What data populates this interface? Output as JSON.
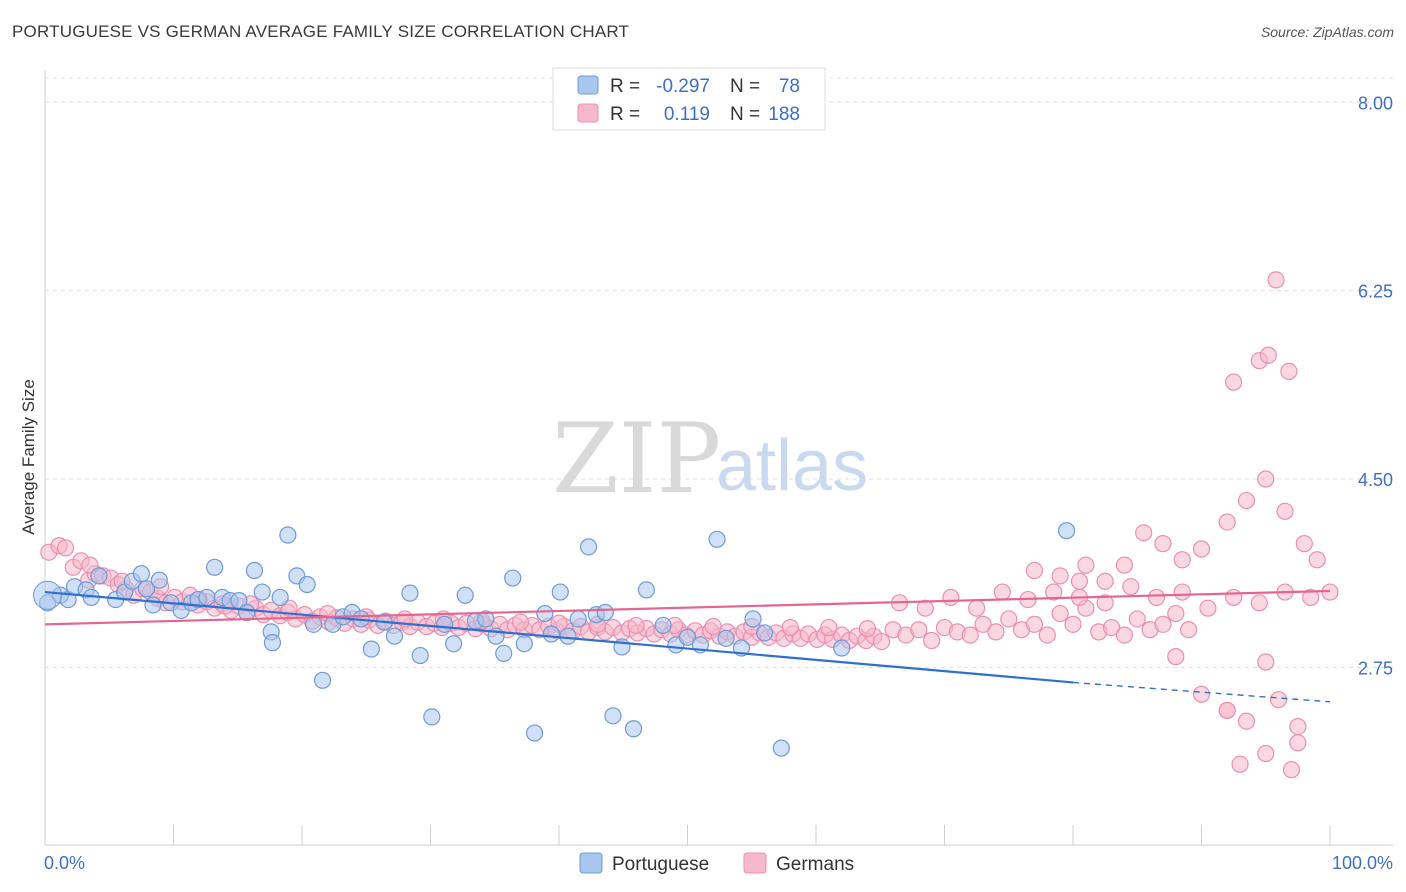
{
  "header": {
    "title": "PORTUGUESE VS GERMAN AVERAGE FAMILY SIZE CORRELATION CHART",
    "source": "Source: ZipAtlas.com"
  },
  "watermark": {
    "zip": "ZIP",
    "atlas": "atlas"
  },
  "legend": {
    "rows": [
      {
        "r_label": "R =",
        "r_value": "-0.297",
        "n_label": "N =",
        "n_value": "78",
        "color": "#8fb4e6"
      },
      {
        "r_label": "R =",
        "r_value": "0.119",
        "n_label": "N =",
        "n_value": "188",
        "color": "#f2a5bf"
      }
    ]
  },
  "colors": {
    "portuguese_fill": "#a9c6ee",
    "portuguese_stroke": "#6f9ad8",
    "portuguese_line": "#2f6fcf",
    "german_fill": "#f6b8cb",
    "german_stroke": "#ec8fae",
    "german_line": "#e5658f"
  },
  "chart_data": {
    "type": "scatter",
    "xlabel": "",
    "ylabel": "Average Family Size",
    "xlim": [
      0,
      100
    ],
    "ylim": [
      1.1,
      8.3
    ],
    "x_tick_labels": [
      "0.0%",
      "100.0%"
    ],
    "y_ticks": [
      2.75,
      4.5,
      6.25,
      8.0
    ],
    "y_tick_labels": [
      "2.75",
      "4.50",
      "6.25",
      "8.00"
    ],
    "grid": "horizontal dashed",
    "legend_position": "top-center",
    "series": [
      {
        "name": "Portuguese",
        "trend": {
          "x0": 0,
          "y0": 3.45,
          "x1": 80,
          "y1": 2.61,
          "dashed_to": 100,
          "dashed_y": 2.43
        },
        "points": [
          [
            0.2,
            3.35
          ],
          [
            1.2,
            3.42
          ],
          [
            1.8,
            3.38
          ],
          [
            2.3,
            3.5
          ],
          [
            3.2,
            3.47
          ],
          [
            3.6,
            3.4
          ],
          [
            4.2,
            3.6
          ],
          [
            5.5,
            3.38
          ],
          [
            6.2,
            3.45
          ],
          [
            6.8,
            3.55
          ],
          [
            7.5,
            3.62
          ],
          [
            7.9,
            3.48
          ],
          [
            8.4,
            3.33
          ],
          [
            8.9,
            3.56
          ],
          [
            9.8,
            3.35
          ],
          [
            10.6,
            3.28
          ],
          [
            11.4,
            3.35
          ],
          [
            11.9,
            3.38
          ],
          [
            12.6,
            3.4
          ],
          [
            13.2,
            3.68
          ],
          [
            13.8,
            3.4
          ],
          [
            14.4,
            3.37
          ],
          [
            15.1,
            3.37
          ],
          [
            15.7,
            3.26
          ],
          [
            16.3,
            3.65
          ],
          [
            16.9,
            3.45
          ],
          [
            17.6,
            3.08
          ],
          [
            17.7,
            2.98
          ],
          [
            18.3,
            3.4
          ],
          [
            18.9,
            3.98
          ],
          [
            19.6,
            3.6
          ],
          [
            20.4,
            3.52
          ],
          [
            20.9,
            3.15
          ],
          [
            21.6,
            2.63
          ],
          [
            22.4,
            3.15
          ],
          [
            23.2,
            3.22
          ],
          [
            23.9,
            3.26
          ],
          [
            24.6,
            3.2
          ],
          [
            25.4,
            2.92
          ],
          [
            26.4,
            3.17
          ],
          [
            27.2,
            3.04
          ],
          [
            28.4,
            3.44
          ],
          [
            29.2,
            2.86
          ],
          [
            30.1,
            2.29
          ],
          [
            31.1,
            3.15
          ],
          [
            31.8,
            2.97
          ],
          [
            32.7,
            3.42
          ],
          [
            33.5,
            3.18
          ],
          [
            34.3,
            3.2
          ],
          [
            35.1,
            3.04
          ],
          [
            35.7,
            2.88
          ],
          [
            36.4,
            3.58
          ],
          [
            37.3,
            2.97
          ],
          [
            38.1,
            2.14
          ],
          [
            38.9,
            3.25
          ],
          [
            39.4,
            3.06
          ],
          [
            40.1,
            3.45
          ],
          [
            40.7,
            3.04
          ],
          [
            41.5,
            3.2
          ],
          [
            42.3,
            3.87
          ],
          [
            42.9,
            3.24
          ],
          [
            43.6,
            3.26
          ],
          [
            44.2,
            2.3
          ],
          [
            44.9,
            2.94
          ],
          [
            45.8,
            2.18
          ],
          [
            46.8,
            3.47
          ],
          [
            48.1,
            3.14
          ],
          [
            49.1,
            2.96
          ],
          [
            50.0,
            3.03
          ],
          [
            51.0,
            2.96
          ],
          [
            52.3,
            3.94
          ],
          [
            53.0,
            3.02
          ],
          [
            54.2,
            2.93
          ],
          [
            55.1,
            3.2
          ],
          [
            56.0,
            3.07
          ],
          [
            57.3,
            2.0
          ],
          [
            62.0,
            2.93
          ],
          [
            79.5,
            4.02
          ]
        ]
      },
      {
        "name": "Germans",
        "trend": {
          "x0": 0,
          "y0": 3.15,
          "x1": 100,
          "y1": 3.46
        },
        "points": [
          [
            0.3,
            3.82
          ],
          [
            1.1,
            3.88
          ],
          [
            1.6,
            3.86
          ],
          [
            2.2,
            3.68
          ],
          [
            2.8,
            3.74
          ],
          [
            3.4,
            3.56
          ],
          [
            3.9,
            3.62
          ],
          [
            4.5,
            3.6
          ],
          [
            5.1,
            3.58
          ],
          [
            5.7,
            3.52
          ],
          [
            6.3,
            3.48
          ],
          [
            6.9,
            3.42
          ],
          [
            7.6,
            3.48
          ],
          [
            8.2,
            3.45
          ],
          [
            8.8,
            3.39
          ],
          [
            9.4,
            3.35
          ],
          [
            10.1,
            3.4
          ],
          [
            10.7,
            3.36
          ],
          [
            11.3,
            3.42
          ],
          [
            11.9,
            3.33
          ],
          [
            12.6,
            3.36
          ],
          [
            13.2,
            3.3
          ],
          [
            13.8,
            3.34
          ],
          [
            14.5,
            3.28
          ],
          [
            15.1,
            3.32
          ],
          [
            15.7,
            3.26
          ],
          [
            16.4,
            3.3
          ],
          [
            17.0,
            3.24
          ],
          [
            17.6,
            3.28
          ],
          [
            18.3,
            3.23
          ],
          [
            18.9,
            3.26
          ],
          [
            19.5,
            3.2
          ],
          [
            20.2,
            3.24
          ],
          [
            20.8,
            3.18
          ],
          [
            21.4,
            3.22
          ],
          [
            22.1,
            3.17
          ],
          [
            22.7,
            3.21
          ],
          [
            23.3,
            3.16
          ],
          [
            24.0,
            3.2
          ],
          [
            24.6,
            3.15
          ],
          [
            25.2,
            3.19
          ],
          [
            25.9,
            3.14
          ],
          [
            26.5,
            3.18
          ],
          [
            27.1,
            3.14
          ],
          [
            27.8,
            3.17
          ],
          [
            28.4,
            3.13
          ],
          [
            29.0,
            3.17
          ],
          [
            29.7,
            3.13
          ],
          [
            30.3,
            3.16
          ],
          [
            30.9,
            3.12
          ],
          [
            31.6,
            3.16
          ],
          [
            32.2,
            3.12
          ],
          [
            32.8,
            3.16
          ],
          [
            33.5,
            3.11
          ],
          [
            34.1,
            3.15
          ],
          [
            34.7,
            3.11
          ],
          [
            35.4,
            3.15
          ],
          [
            36.0,
            3.1
          ],
          [
            36.6,
            3.14
          ],
          [
            37.3,
            3.1
          ],
          [
            37.9,
            3.14
          ],
          [
            38.5,
            3.1
          ],
          [
            39.2,
            3.13
          ],
          [
            39.8,
            3.09
          ],
          [
            40.4,
            3.13
          ],
          [
            41.1,
            3.09
          ],
          [
            41.7,
            3.13
          ],
          [
            42.3,
            3.08
          ],
          [
            43.0,
            3.12
          ],
          [
            43.6,
            3.08
          ],
          [
            44.2,
            3.12
          ],
          [
            44.9,
            3.07
          ],
          [
            45.5,
            3.11
          ],
          [
            46.1,
            3.07
          ],
          [
            46.8,
            3.11
          ],
          [
            47.4,
            3.06
          ],
          [
            48.0,
            3.1
          ],
          [
            48.7,
            3.06
          ],
          [
            49.3,
            3.1
          ],
          [
            49.9,
            3.05
          ],
          [
            50.6,
            3.09
          ],
          [
            51.2,
            3.05
          ],
          [
            51.8,
            3.09
          ],
          [
            52.5,
            3.04
          ],
          [
            53.1,
            3.08
          ],
          [
            53.7,
            3.04
          ],
          [
            54.4,
            3.08
          ],
          [
            55.0,
            3.03
          ],
          [
            55.6,
            3.07
          ],
          [
            56.3,
            3.03
          ],
          [
            56.9,
            3.07
          ],
          [
            57.5,
            3.02
          ],
          [
            58.2,
            3.06
          ],
          [
            58.8,
            3.02
          ],
          [
            59.4,
            3.06
          ],
          [
            60.1,
            3.01
          ],
          [
            60.7,
            3.05
          ],
          [
            61.3,
            3.01
          ],
          [
            62.0,
            3.05
          ],
          [
            62.6,
            3.0
          ],
          [
            63.2,
            3.04
          ],
          [
            63.9,
            3.0
          ],
          [
            64.5,
            3.04
          ],
          [
            65.1,
            2.99
          ],
          [
            3.5,
            3.7
          ],
          [
            6.0,
            3.55
          ],
          [
            9.0,
            3.5
          ],
          [
            12.0,
            3.38
          ],
          [
            14.0,
            3.32
          ],
          [
            16.0,
            3.34
          ],
          [
            19.0,
            3.3
          ],
          [
            22.0,
            3.25
          ],
          [
            25.0,
            3.22
          ],
          [
            28.0,
            3.2
          ],
          [
            31.0,
            3.2
          ],
          [
            34.0,
            3.18
          ],
          [
            37.0,
            3.17
          ],
          [
            40.0,
            3.16
          ],
          [
            43.0,
            3.15
          ],
          [
            46.0,
            3.14
          ],
          [
            49.0,
            3.14
          ],
          [
            52.0,
            3.13
          ],
          [
            55.0,
            3.13
          ],
          [
            58.0,
            3.12
          ],
          [
            61.0,
            3.12
          ],
          [
            64.0,
            3.11
          ],
          [
            66.0,
            3.1
          ],
          [
            67.0,
            3.05
          ],
          [
            68.0,
            3.1
          ],
          [
            69.0,
            3.0
          ],
          [
            70.0,
            3.12
          ],
          [
            71.0,
            3.08
          ],
          [
            72.0,
            3.05
          ],
          [
            73.0,
            3.15
          ],
          [
            74.0,
            3.08
          ],
          [
            75.0,
            3.2
          ],
          [
            76.0,
            3.1
          ],
          [
            77.0,
            3.15
          ],
          [
            78.0,
            3.05
          ],
          [
            79.0,
            3.25
          ],
          [
            80.0,
            3.15
          ],
          [
            81.0,
            3.3
          ],
          [
            82.0,
            3.08
          ],
          [
            83.0,
            3.12
          ],
          [
            84.0,
            3.05
          ],
          [
            85.0,
            3.2
          ],
          [
            86.0,
            3.1
          ],
          [
            87.0,
            3.15
          ],
          [
            88.0,
            3.25
          ],
          [
            89.0,
            3.1
          ],
          [
            66.5,
            3.35
          ],
          [
            68.5,
            3.3
          ],
          [
            70.5,
            3.4
          ],
          [
            72.5,
            3.3
          ],
          [
            74.5,
            3.45
          ],
          [
            76.5,
            3.38
          ],
          [
            78.5,
            3.45
          ],
          [
            80.5,
            3.4
          ],
          [
            82.5,
            3.35
          ],
          [
            84.5,
            3.5
          ],
          [
            86.5,
            3.4
          ],
          [
            88.5,
            3.45
          ],
          [
            90.5,
            3.3
          ],
          [
            92.5,
            3.4
          ],
          [
            94.5,
            3.35
          ],
          [
            96.5,
            3.45
          ],
          [
            98.5,
            3.4
          ],
          [
            100.0,
            3.45
          ],
          [
            77.0,
            3.65
          ],
          [
            79.0,
            3.6
          ],
          [
            80.5,
            3.55
          ],
          [
            81.0,
            3.7
          ],
          [
            82.5,
            3.55
          ],
          [
            84.0,
            3.7
          ],
          [
            85.5,
            4.0
          ],
          [
            87.0,
            3.9
          ],
          [
            88.5,
            3.75
          ],
          [
            90.0,
            3.85
          ],
          [
            92.0,
            4.1
          ],
          [
            93.5,
            4.3
          ],
          [
            95.0,
            4.5
          ],
          [
            96.5,
            4.2
          ],
          [
            98.0,
            3.9
          ],
          [
            99.0,
            3.75
          ],
          [
            88.0,
            2.85
          ],
          [
            90.0,
            2.5
          ],
          [
            92.0,
            2.35
          ],
          [
            93.5,
            2.25
          ],
          [
            95.0,
            2.8
          ],
          [
            96.0,
            2.45
          ],
          [
            97.5,
            2.2
          ]
        ]
      },
      {
        "name": "Germans-outliers",
        "points": [
          [
            92.5,
            5.4
          ],
          [
            94.5,
            5.6
          ],
          [
            95.2,
            5.65
          ],
          [
            96.8,
            5.5
          ],
          [
            95.8,
            6.35
          ],
          [
            92.0,
            2.35
          ],
          [
            95.0,
            1.95
          ],
          [
            93.0,
            1.85
          ],
          [
            97.5,
            2.05
          ],
          [
            97.0,
            1.8
          ]
        ]
      }
    ]
  },
  "bottom_legend": [
    {
      "label": "Portuguese"
    },
    {
      "label": "Germans"
    }
  ]
}
